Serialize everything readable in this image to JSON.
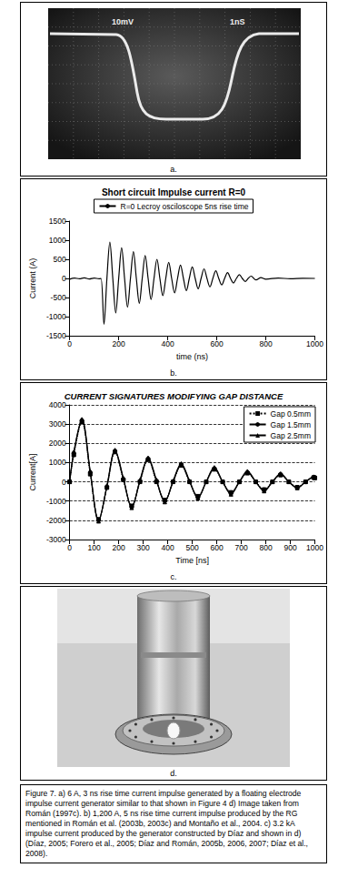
{
  "panels": [
    {
      "label": "a.",
      "kind": "scope_photo",
      "screen_texts": [
        "10mV",
        "1nS"
      ]
    },
    {
      "label": "b.",
      "kind": "chart"
    },
    {
      "label": "c.",
      "kind": "chart"
    },
    {
      "label": "d.",
      "kind": "generator_photo"
    }
  ],
  "caption": "Figure 7. a) 6 A, 3 ns rise time current impulse generated by a floating electrode impulse current generator similar to that shown in Figure 4 d) Image taken from Román (1997c). b) 1,200 A, 5 ns rise time current impulse produced by the RG mentioned in Román et al. (2003b, 2003c) and Montaño et al., 2004. c) 3.2 kA impulse current produced by the generator constructed by Díaz and shown in d) (Díaz, 2005; Forero et al., 2005; Díaz and Román, 2005b, 2006, 2007; Díaz et al., 2008).",
  "chart_data": [
    {
      "type": "line",
      "title": "Short circuit Impulse current R=0",
      "x_label": "time (ns)",
      "y_label": "Current (A)",
      "x": [
        0,
        20,
        40,
        60,
        80,
        100,
        120,
        128,
        140,
        152,
        164,
        176,
        188,
        200,
        212,
        224,
        236,
        248,
        260,
        272,
        284,
        296,
        308,
        320,
        332,
        344,
        356,
        368,
        380,
        392,
        404,
        416,
        428,
        440,
        452,
        464,
        476,
        488,
        500,
        512,
        524,
        536,
        548,
        560,
        572,
        584,
        596,
        608,
        620,
        632,
        644,
        656,
        668,
        680,
        692,
        704,
        716,
        728,
        740,
        760,
        780,
        800,
        850,
        900,
        950,
        1000
      ],
      "series": [
        {
          "name": "R=0 Lecroy osciloscope 5ns rise time",
          "color": "#000000",
          "marker": "none",
          "line_style": "solid",
          "values": [
            -20,
            10,
            -10,
            15,
            -15,
            10,
            -10,
            0,
            -1200,
            0,
            950,
            0,
            -900,
            0,
            800,
            0,
            -750,
            0,
            700,
            0,
            -650,
            0,
            600,
            0,
            -550,
            0,
            500,
            0,
            -450,
            0,
            420,
            0,
            -380,
            0,
            350,
            0,
            -320,
            0,
            300,
            0,
            -270,
            0,
            250,
            0,
            -220,
            0,
            200,
            0,
            -170,
            0,
            150,
            0,
            -120,
            0,
            100,
            0,
            -80,
            0,
            60,
            -40,
            20,
            -20,
            10,
            -10,
            5,
            0
          ]
        }
      ],
      "xlim": [
        0,
        1000
      ],
      "xticks": [
        0,
        200,
        400,
        600,
        800,
        1000
      ],
      "ylim": [
        -1500,
        1500
      ],
      "yticks": [
        -1500,
        -1000,
        -500,
        0,
        500,
        1000,
        1500
      ],
      "grid": false,
      "legend": "top"
    },
    {
      "type": "line",
      "title": "CURRENT SIGNATURES MODIFYING GAP DISTANCE",
      "x_label": "Time [ns]",
      "y_label": "Current[A]",
      "x": [
        0,
        17,
        50,
        84,
        118,
        152,
        185,
        219,
        253,
        287,
        320,
        354,
        388,
        422,
        455,
        489,
        523,
        557,
        590,
        624,
        658,
        692,
        725,
        759,
        793,
        827,
        860,
        894,
        928,
        962,
        995,
        1000
      ],
      "series": [
        {
          "name": "Gap 0.5mm",
          "color": "#000000",
          "marker": "square",
          "line_style": "dotted",
          "values": [
            0,
            1400,
            3100,
            400,
            -1950,
            -300,
            1550,
            100,
            -1250,
            0,
            1150,
            0,
            -950,
            0,
            850,
            0,
            -750,
            0,
            650,
            0,
            -550,
            0,
            450,
            0,
            -400,
            0,
            350,
            0,
            -280,
            0,
            220,
            200
          ]
        },
        {
          "name": "Gap 1.5mm",
          "color": "#000000",
          "marker": "circle",
          "line_style": "solid",
          "values": [
            0,
            1500,
            3200,
            500,
            -2000,
            -250,
            1600,
            150,
            -1300,
            50,
            1200,
            50,
            -1000,
            0,
            900,
            0,
            -800,
            0,
            700,
            0,
            -600,
            0,
            500,
            0,
            -450,
            0,
            400,
            0,
            -300,
            0,
            250,
            230
          ]
        },
        {
          "name": "Gap 2.5mm",
          "color": "#000000",
          "marker": "triangle",
          "line_style": "solid",
          "values": [
            0,
            1550,
            3250,
            550,
            -2050,
            -200,
            1650,
            200,
            -1350,
            100,
            1250,
            100,
            -1050,
            50,
            950,
            50,
            -850,
            0,
            750,
            0,
            -650,
            0,
            550,
            0,
            -480,
            0,
            420,
            0,
            -320,
            0,
            260,
            240
          ]
        }
      ],
      "xlim": [
        0,
        1000
      ],
      "xticks": [
        0,
        100,
        200,
        300,
        400,
        500,
        600,
        700,
        800,
        900,
        1000
      ],
      "ylim": [
        -3000,
        4000
      ],
      "yticks": [
        -3000,
        -2000,
        -1000,
        0,
        1000,
        2000,
        3000,
        4000
      ],
      "grid": true,
      "legend": "right"
    }
  ]
}
